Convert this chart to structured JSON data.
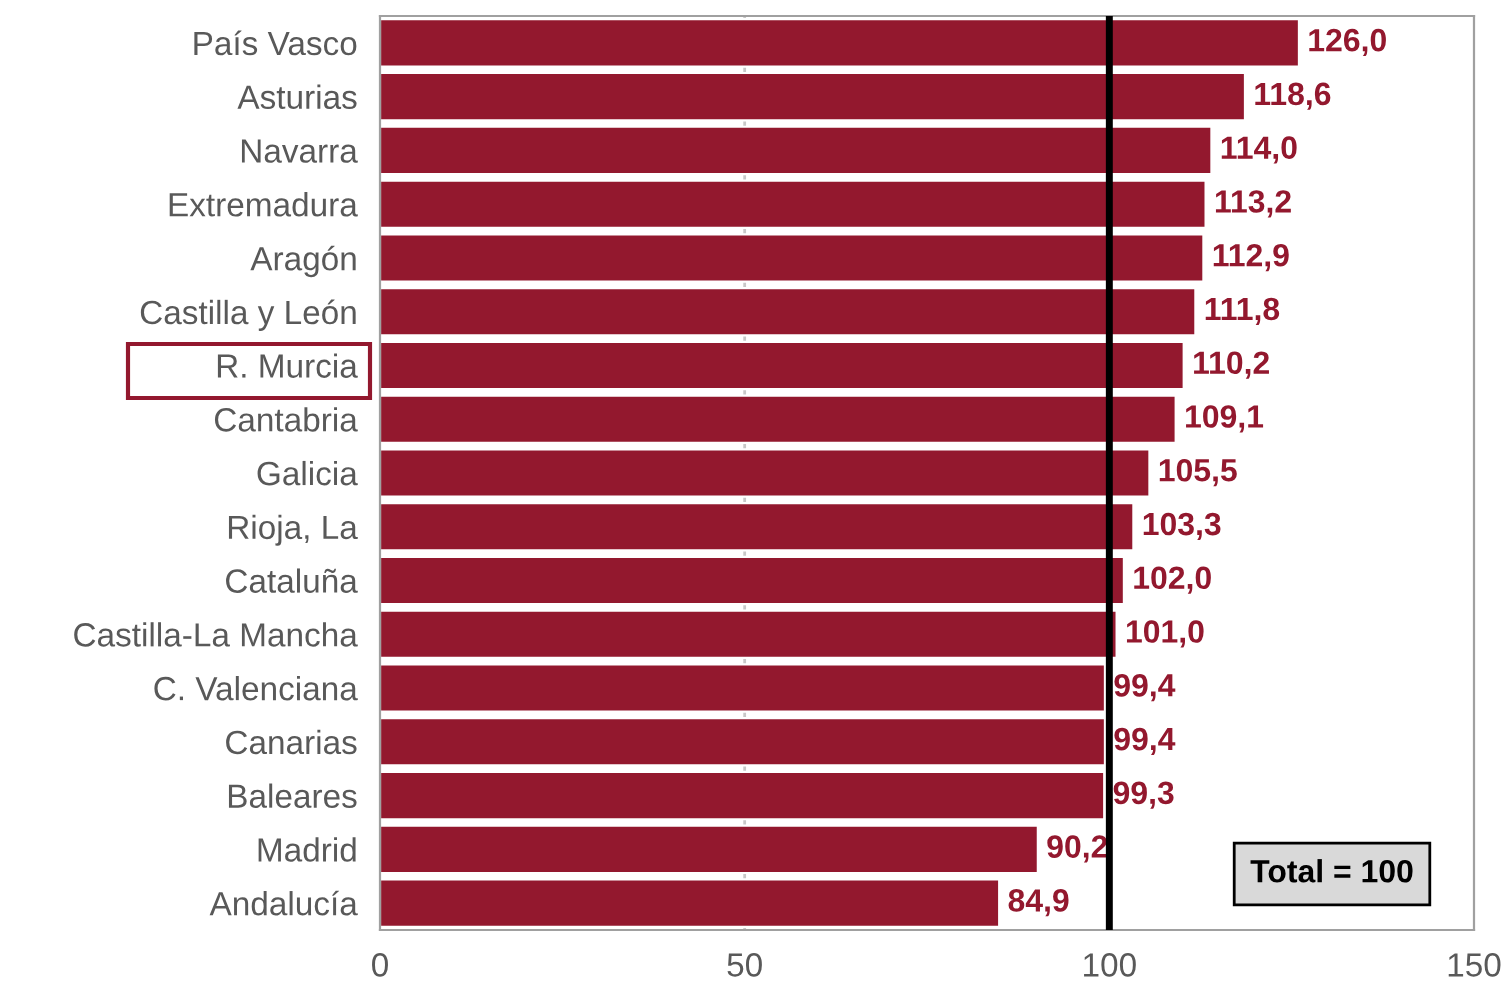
{
  "chart_data": {
    "type": "bar",
    "orientation": "horizontal",
    "categories": [
      "País Vasco",
      "Asturias",
      "Navarra",
      "Extremadura",
      "Aragón",
      "Castilla y León",
      "R. Murcia",
      "Cantabria",
      "Galicia",
      "Rioja, La",
      "Cataluña",
      "Castilla-La Mancha",
      "C. Valenciana",
      "Canarias",
      "Baleares",
      "Madrid",
      "Andalucía"
    ],
    "values": [
      126.0,
      118.6,
      114.0,
      113.2,
      112.9,
      111.8,
      110.2,
      109.1,
      105.5,
      103.3,
      102.0,
      101.0,
      99.4,
      99.4,
      99.3,
      90.2,
      84.9
    ],
    "value_labels": [
      "126,0",
      "118,6",
      "114,0",
      "113,2",
      "112,9",
      "111,8",
      "110,2",
      "109,1",
      "105,5",
      "103,3",
      "102,0",
      "101,0",
      "99,4",
      "99,4",
      "99,3",
      "90,2",
      "84,9"
    ],
    "color": "#93182e",
    "xlim": [
      0,
      150
    ],
    "xticks": [
      0,
      50,
      100,
      150
    ],
    "ref_lines": [
      {
        "axis": "x",
        "value": 50,
        "color": "#c8c8c8"
      },
      {
        "axis": "x",
        "value": 100,
        "label": "Total = 100",
        "color": "#000000"
      }
    ]
  }
}
